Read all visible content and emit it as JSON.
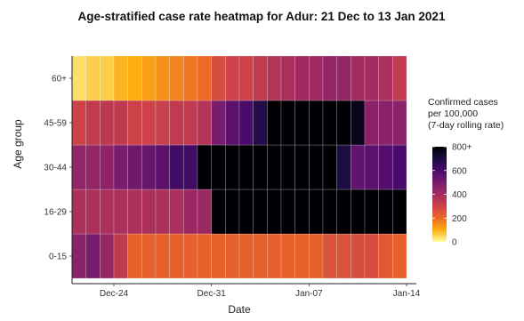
{
  "chart_data": {
    "type": "heatmap",
    "title": "Age-stratified case rate heatmap for Adur: 21 Dec to 13 Jan 2021",
    "xlabel": "Date",
    "ylabel": "Age group",
    "x_start": "2020-12-21",
    "x_end": "2021-01-13",
    "x_ticks": [
      {
        "date": "2020-12-24",
        "label": "Dec-24"
      },
      {
        "date": "2020-12-31",
        "label": "Dec-31"
      },
      {
        "date": "2021-01-07",
        "label": "Jan-07"
      },
      {
        "date": "2021-01-14",
        "label": "Jan-14"
      }
    ],
    "y_categories": [
      "0-15",
      "16-29",
      "30-44",
      "45-59",
      "60+"
    ],
    "legend": {
      "title_lines": [
        "Confirmed cases",
        "per 100,000",
        "(7-day rolling rate)"
      ],
      "range": [
        0,
        800
      ],
      "ticks": [
        {
          "value": 0,
          "label": "0"
        },
        {
          "value": 200,
          "label": "200"
        },
        {
          "value": 400,
          "label": "400"
        },
        {
          "value": 600,
          "label": "600"
        },
        {
          "value": 800,
          "label": "800+"
        }
      ]
    },
    "colorscale": [
      "#fcffa4",
      "#fcad12",
      "#ed6925",
      "#cc4248",
      "#a32c61",
      "#781c6d",
      "#4a0c6b",
      "#1b0c41",
      "#000004"
    ],
    "series": [
      {
        "name": "0-15",
        "values": [
          460,
          500,
          430,
          330,
          220,
          220,
          220,
          220,
          220,
          220,
          220,
          220,
          220,
          220,
          220,
          220,
          220,
          220,
          260,
          260,
          270,
          270,
          240,
          220
        ]
      },
      {
        "name": "16-29",
        "values": [
          380,
          380,
          380,
          380,
          380,
          380,
          380,
          380,
          420,
          420,
          900,
          900,
          900,
          900,
          900,
          900,
          900,
          900,
          900,
          900,
          900,
          900,
          900,
          900
        ]
      },
      {
        "name": "30-44",
        "values": [
          440,
          440,
          450,
          500,
          520,
          540,
          560,
          620,
          620,
          820,
          820,
          820,
          820,
          900,
          900,
          900,
          900,
          900,
          900,
          700,
          550,
          560,
          580,
          600
        ]
      },
      {
        "name": "45-59",
        "values": [
          300,
          330,
          340,
          330,
          300,
          300,
          310,
          330,
          330,
          360,
          500,
          560,
          600,
          680,
          900,
          900,
          900,
          900,
          900,
          900,
          760,
          460,
          460,
          460
        ]
      },
      {
        "name": "60+",
        "values": [
          40,
          60,
          60,
          90,
          100,
          120,
          140,
          160,
          180,
          200,
          270,
          300,
          300,
          330,
          360,
          380,
          410,
          410,
          440,
          440,
          400,
          400,
          380,
          330
        ]
      }
    ]
  }
}
